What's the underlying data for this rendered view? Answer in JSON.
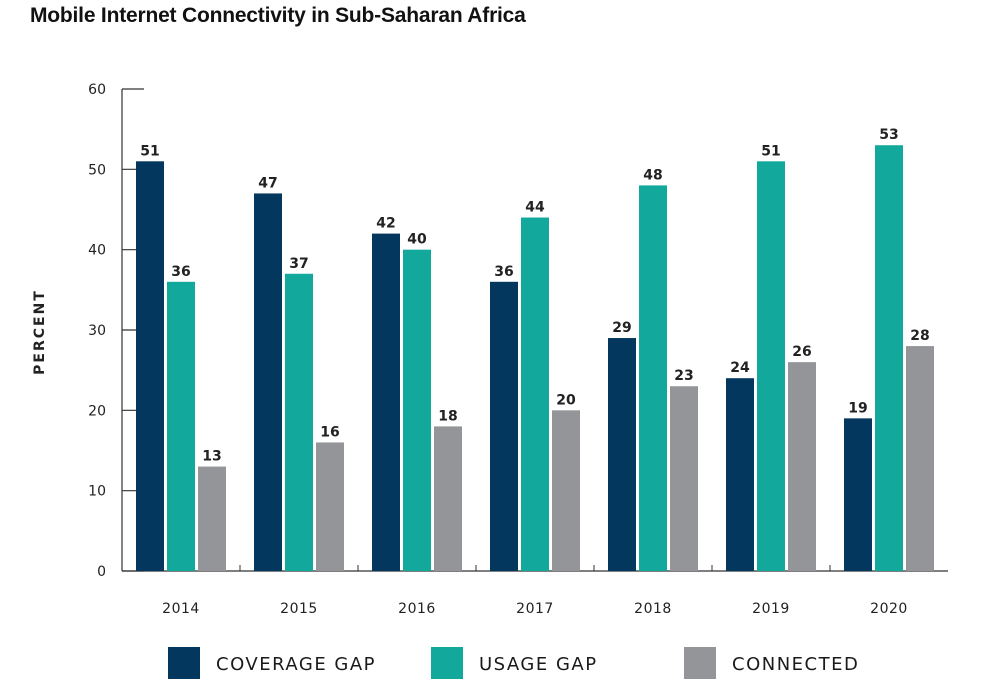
{
  "chart_data": {
    "type": "bar",
    "title": "Mobile Internet Connectivity in Sub-Saharan Africa",
    "ylabel": "PERCENT",
    "xlabel": "",
    "ylim": [
      0,
      60
    ],
    "yticks": [
      0,
      10,
      20,
      30,
      40,
      50,
      60
    ],
    "categories": [
      "2014",
      "2015",
      "2016",
      "2017",
      "2018",
      "2019",
      "2020"
    ],
    "series": [
      {
        "name": "COVERAGE GAP",
        "color": "#03375e",
        "values": [
          51,
          47,
          42,
          36,
          29,
          24,
          19
        ]
      },
      {
        "name": "USAGE GAP",
        "color": "#12a89b",
        "values": [
          36,
          37,
          40,
          44,
          48,
          51,
          53
        ]
      },
      {
        "name": "CONNECTED",
        "color": "#939598",
        "values": [
          13,
          16,
          18,
          20,
          23,
          26,
          28
        ]
      }
    ],
    "legend_position": "bottom",
    "grid": false
  }
}
